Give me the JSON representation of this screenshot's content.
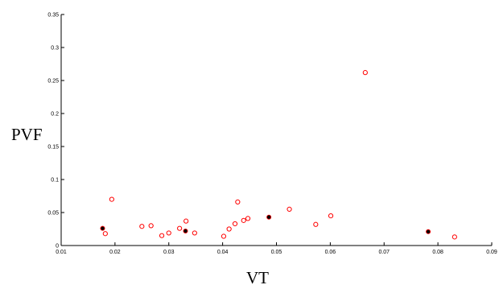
{
  "chart_data": {
    "type": "scatter",
    "xlabel": "VT",
    "ylabel": "PVF",
    "xlim": [
      0.01,
      0.09
    ],
    "ylim": [
      0,
      0.35
    ],
    "x_ticks": [
      "0.01",
      "0.02",
      "0.03",
      "0.04",
      "0.05",
      "0.06",
      "0.07",
      "0.08",
      "0.09"
    ],
    "y_ticks": [
      "0",
      "0.05",
      "0.1",
      "0.15",
      "0.2",
      "0.25",
      "0.3",
      "0.35"
    ],
    "grid": false,
    "series": [
      {
        "marker": "hollow-circle",
        "color": "#ff0000",
        "points": [
          {
            "x": 0.0182,
            "y": 0.018
          },
          {
            "x": 0.0194,
            "y": 0.07
          },
          {
            "x": 0.025,
            "y": 0.029
          },
          {
            "x": 0.0267,
            "y": 0.03
          },
          {
            "x": 0.0287,
            "y": 0.015
          },
          {
            "x": 0.03,
            "y": 0.019
          },
          {
            "x": 0.032,
            "y": 0.026
          },
          {
            "x": 0.0332,
            "y": 0.037
          },
          {
            "x": 0.0348,
            "y": 0.019
          },
          {
            "x": 0.0402,
            "y": 0.014
          },
          {
            "x": 0.0412,
            "y": 0.025
          },
          {
            "x": 0.0423,
            "y": 0.033
          },
          {
            "x": 0.0428,
            "y": 0.066
          },
          {
            "x": 0.0439,
            "y": 0.038
          },
          {
            "x": 0.0447,
            "y": 0.041
          },
          {
            "x": 0.0524,
            "y": 0.055
          },
          {
            "x": 0.0573,
            "y": 0.032
          },
          {
            "x": 0.0601,
            "y": 0.045
          },
          {
            "x": 0.0665,
            "y": 0.262
          },
          {
            "x": 0.0831,
            "y": 0.013
          }
        ]
      },
      {
        "marker": "filled-circle",
        "color": "#000000",
        "outline": "#ff0000",
        "points": [
          {
            "x": 0.0177,
            "y": 0.026
          },
          {
            "x": 0.0331,
            "y": 0.022
          },
          {
            "x": 0.0486,
            "y": 0.043
          },
          {
            "x": 0.0782,
            "y": 0.021
          }
        ]
      }
    ]
  }
}
